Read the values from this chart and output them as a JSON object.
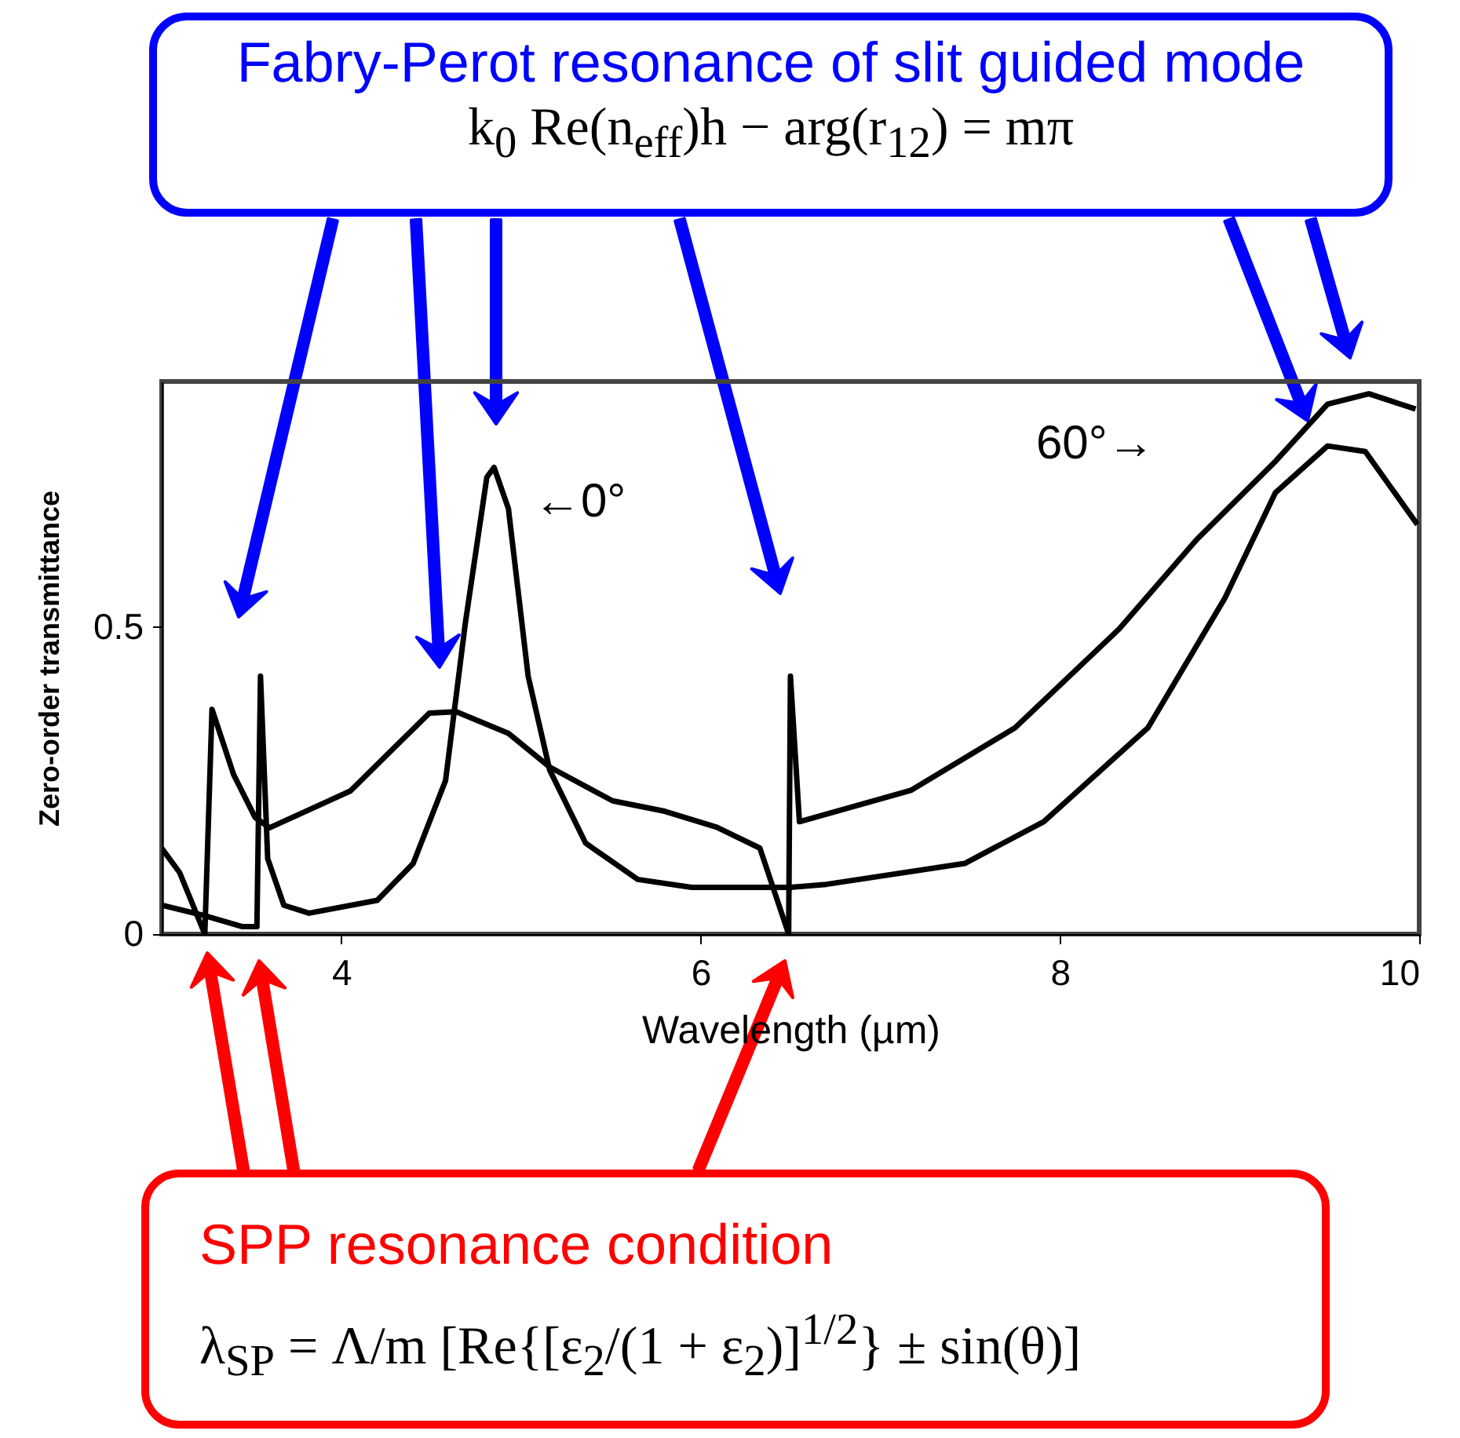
{
  "chart_data": {
    "type": "line",
    "xlabel": "Wavelength (µm)",
    "ylabel": "Zero-order transmittance",
    "xlim": [
      3,
      10
    ],
    "xticks": [
      4,
      6,
      8,
      10
    ],
    "ylim": [
      0,
      0.9
    ],
    "yticks": [
      0,
      0.5
    ],
    "grid": false,
    "legend": false,
    "series": [
      {
        "color": "#000000",
        "x": [
          3.0,
          3.24,
          3.45,
          3.53,
          3.55,
          3.59,
          3.68,
          3.82,
          4.2,
          4.4,
          4.58,
          4.69,
          4.81,
          4.85,
          4.93,
          5.04,
          5.16,
          5.36,
          5.65,
          5.95,
          6.5,
          6.7,
          7.47,
          7.91,
          8.49,
          8.92,
          9.2,
          9.49,
          9.7,
          9.99
        ],
        "values": [
          0.047,
          0.03,
          0.012,
          0.012,
          0.42,
          0.123,
          0.047,
          0.034,
          0.055,
          0.115,
          0.25,
          0.506,
          0.744,
          0.76,
          0.693,
          0.42,
          0.267,
          0.148,
          0.089,
          0.076,
          0.076,
          0.081,
          0.115,
          0.183,
          0.336,
          0.548,
          0.719,
          0.795,
          0.786,
          0.667
        ]
      },
      {
        "color": "#000000",
        "x": [
          3.0,
          3.1,
          3.24,
          3.28,
          3.4,
          3.52,
          3.6,
          4.05,
          4.49,
          4.64,
          4.93,
          5.16,
          5.51,
          5.8,
          6.09,
          6.33,
          6.49,
          6.5,
          6.55,
          7.17,
          7.75,
          8.33,
          8.76,
          9.2,
          9.49,
          9.72,
          9.98
        ],
        "values": [
          0.14,
          0.1,
          0.0,
          0.366,
          0.26,
          0.19,
          0.173,
          0.233,
          0.36,
          0.362,
          0.327,
          0.272,
          0.217,
          0.2,
          0.174,
          0.14,
          0.0,
          0.42,
          0.183,
          0.234,
          0.336,
          0.497,
          0.642,
          0.77,
          0.863,
          0.88,
          0.855
        ]
      }
    ],
    "annotations": [
      "Fabry-Perot resonance of slit guided mode",
      "k$_{0}$ Re(n$_{eff}$)h − arg(r$_{12}$) = mπ",
      "SPP resonance condition",
      "λ$_{SP}$ = Λ/m [Re{[ε$_{2}$/(1 + ε$_{2}$)]$^{1/2}$} ± sin(θ)]",
      "←0°",
      "60°→"
    ]
  }
}
